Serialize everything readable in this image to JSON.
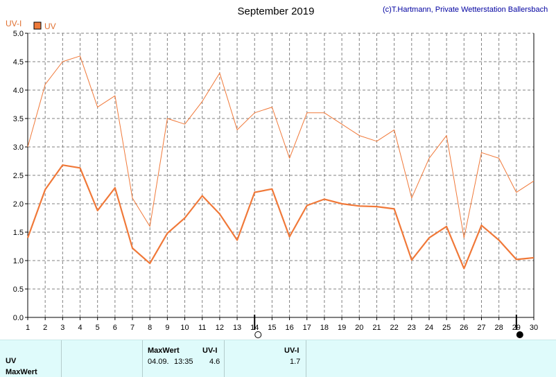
{
  "header": {
    "title": "September 2019",
    "copyright": "(c)T.Hartmann, Private Wetterstation Ballersbach"
  },
  "colors": {
    "axis_label": "#e07030",
    "series": "#f07838",
    "legend_box": "#ee7a3a",
    "grid": "#808080",
    "footer_bg": "#dffbfb",
    "copyright": "#0000a0"
  },
  "chart_data": {
    "type": "line",
    "title": "September 2019",
    "ylabel": "UV-I",
    "legend": [
      "UV"
    ],
    "legend_position": "top-left",
    "grid": true,
    "x": [
      1,
      2,
      3,
      4,
      5,
      6,
      7,
      8,
      9,
      10,
      11,
      12,
      13,
      14,
      15,
      16,
      17,
      18,
      19,
      20,
      21,
      22,
      23,
      24,
      25,
      26,
      27,
      28,
      29,
      30
    ],
    "xlim": [
      1,
      30
    ],
    "ylim": [
      0,
      5
    ],
    "y_ticks": [
      "0.0",
      "0.5",
      "1.0",
      "1.5",
      "2.0",
      "2.5",
      "3.0",
      "3.5",
      "4.0",
      "4.5",
      "5.0"
    ],
    "x_ticks": [
      "1",
      "2",
      "3",
      "4",
      "5",
      "6",
      "7",
      "8",
      "9",
      "10",
      "11",
      "12",
      "13",
      "14",
      "15",
      "16",
      "17",
      "18",
      "19",
      "20",
      "21",
      "22",
      "23",
      "24",
      "25",
      "26",
      "27",
      "28",
      "29",
      "30"
    ],
    "series": [
      {
        "name": "UV",
        "style": "thick",
        "values": [
          1.4,
          2.25,
          2.68,
          2.63,
          1.88,
          2.28,
          1.22,
          0.95,
          1.48,
          1.75,
          2.14,
          1.82,
          1.36,
          2.2,
          2.26,
          1.42,
          1.97,
          2.08,
          2.0,
          1.96,
          1.95,
          1.91,
          1.01,
          1.4,
          1.6,
          0.86,
          1.62,
          1.36,
          1.02,
          1.05
        ]
      },
      {
        "style": "thin",
        "values": [
          3.0,
          4.1,
          4.5,
          4.6,
          3.7,
          3.9,
          2.1,
          1.6,
          3.5,
          3.4,
          3.8,
          4.3,
          3.3,
          3.6,
          3.7,
          2.8,
          3.6,
          3.6,
          3.4,
          3.2,
          3.1,
          3.3,
          2.1,
          2.8,
          3.2,
          1.4,
          2.9,
          2.8,
          2.2,
          2.4
        ]
      }
    ],
    "moon_markers": [
      {
        "day": 14,
        "phase": "full-moon"
      },
      {
        "day": 29,
        "phase": "new-moon"
      }
    ]
  },
  "footer": {
    "row_uv": "UV",
    "row_maxwert": "MaxWert",
    "col_maxwert_header": "MaxWert",
    "col_uvi_header": "UV-I",
    "col_date": "04.09.",
    "col_time": "13:35",
    "col_max_value": "4.6",
    "col2_uvi_header": "UV-I",
    "col2_value": "1.7"
  }
}
